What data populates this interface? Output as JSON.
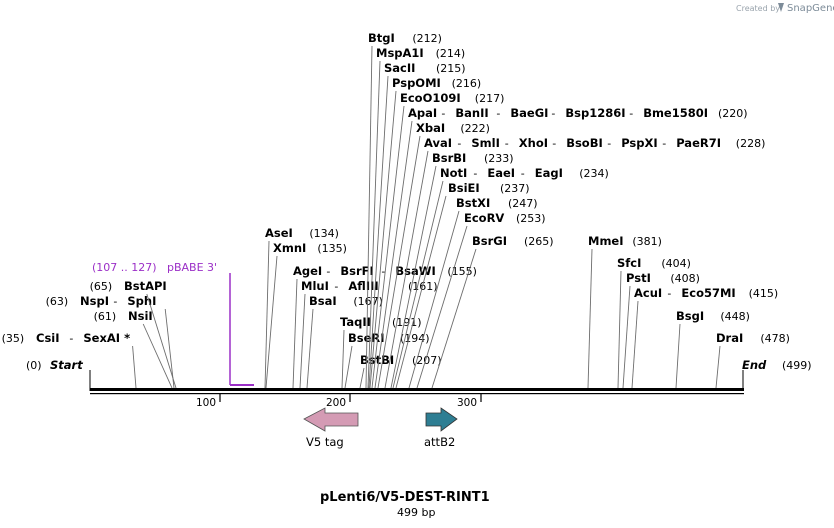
{
  "branding": {
    "created_by": "Created by",
    "product": "SnapGene"
  },
  "map": {
    "title": "pLenti6/V5-DEST-RINT1",
    "length_label": "499 bp",
    "start_label": "Start",
    "start_pos": "(0)",
    "end_label": "End",
    "end_pos": "(499)",
    "ticks": [
      "100",
      "200",
      "300"
    ]
  },
  "sites": [
    {
      "names": [
        "CsiI",
        "SexAI *"
      ],
      "pos": "(35)"
    },
    {
      "names": [
        "NsiI"
      ],
      "pos": "(61)"
    },
    {
      "names": [
        "NspI",
        "SphI"
      ],
      "pos": "(63)"
    },
    {
      "names": [
        "BstAPI"
      ],
      "pos": "(65)"
    },
    {
      "names": [
        "XmnI"
      ],
      "pos": "(135)"
    },
    {
      "names": [
        "AseI"
      ],
      "pos": "(134)"
    },
    {
      "names": [
        "AgeI",
        "BsrFI",
        "BsaWI"
      ],
      "pos": "(155)"
    },
    {
      "names": [
        "MluI",
        "AflIII"
      ],
      "pos": "(161)"
    },
    {
      "names": [
        "BsaI"
      ],
      "pos": "(167)"
    },
    {
      "names": [
        "TaqII"
      ],
      "pos": "(191)"
    },
    {
      "names": [
        "BseRI"
      ],
      "pos": "(194)"
    },
    {
      "names": [
        "BstBI"
      ],
      "pos": "(207)"
    },
    {
      "names": [
        "BtgI"
      ],
      "pos": "(212)"
    },
    {
      "names": [
        "MspA1I"
      ],
      "pos": "(214)"
    },
    {
      "names": [
        "SacII"
      ],
      "pos": "(215)"
    },
    {
      "names": [
        "PspOMI"
      ],
      "pos": "(216)"
    },
    {
      "names": [
        "EcoO109I"
      ],
      "pos": "(217)"
    },
    {
      "names": [
        "ApaI",
        "BanII",
        "BaeGI",
        "Bsp1286I",
        "Bme1580I"
      ],
      "pos": "(220)"
    },
    {
      "names": [
        "XbaI"
      ],
      "pos": "(222)"
    },
    {
      "names": [
        "AvaI",
        "SmlI",
        "XhoI",
        "BsoBI",
        "PspXI",
        "PaeR7I"
      ],
      "pos": "(228)"
    },
    {
      "names": [
        "BsrBI"
      ],
      "pos": "(233)"
    },
    {
      "names": [
        "NotI",
        "EaeI",
        "EagI"
      ],
      "pos": "(234)"
    },
    {
      "names": [
        "BsiEI"
      ],
      "pos": "(237)"
    },
    {
      "names": [
        "BstXI"
      ],
      "pos": "(247)"
    },
    {
      "names": [
        "EcoRV"
      ],
      "pos": "(253)"
    },
    {
      "names": [
        "BsrGI"
      ],
      "pos": "(265)"
    },
    {
      "names": [
        "MmeI"
      ],
      "pos": "(381)"
    },
    {
      "names": [
        "SfcI"
      ],
      "pos": "(404)"
    },
    {
      "names": [
        "PstI"
      ],
      "pos": "(408)"
    },
    {
      "names": [
        "AcuI",
        "Eco57MI"
      ],
      "pos": "(415)"
    },
    {
      "names": [
        "BsgI"
      ],
      "pos": "(448)"
    },
    {
      "names": [
        "DraI"
      ],
      "pos": "(478)"
    }
  ],
  "primer": {
    "range": "(107 .. 127)",
    "name": "pBABE 3'",
    "color": "#9b2fc7"
  },
  "features": [
    {
      "name": "V5 tag",
      "direction": "reverse",
      "color": "#d49bb4"
    },
    {
      "name": "attB2",
      "direction": "forward",
      "color": "#2e7e93"
    }
  ]
}
